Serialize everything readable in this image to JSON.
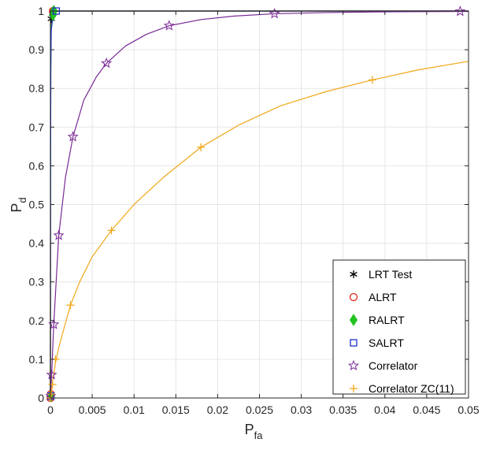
{
  "chart_data": {
    "type": "line",
    "title": "",
    "xlabel": {
      "main": "P",
      "sub": "fa"
    },
    "ylabel": {
      "main": "P",
      "sub": "d"
    },
    "xlim": [
      0,
      0.05
    ],
    "ylim": [
      0,
      1
    ],
    "grid": true,
    "legend_position": "bottom-right",
    "x_ticks": [
      0,
      0.005,
      0.01,
      0.015,
      0.02,
      0.025,
      0.03,
      0.035,
      0.04,
      0.045,
      0.05
    ],
    "x_tick_labels": [
      "0",
      "0.005",
      "0.01",
      "0.015",
      "0.02",
      "0.025",
      "0.03",
      "0.035",
      "0.04",
      "0.045",
      "0.05"
    ],
    "y_ticks": [
      0,
      0.1,
      0.2,
      0.3,
      0.4,
      0.5,
      0.6,
      0.7,
      0.8,
      0.9,
      1
    ],
    "y_tick_labels": [
      "0",
      "0.1",
      "0.2",
      "0.3",
      "0.4",
      "0.5",
      "0.6",
      "0.7",
      "0.8",
      "0.9",
      "1"
    ],
    "series": [
      {
        "name": "LRT Test",
        "color": "#000000",
        "marker": "asterisk",
        "x": [
          0,
          1e-05,
          3e-05,
          0.0001,
          0.0002,
          0.0005,
          0.05
        ],
        "y": [
          0,
          0.6,
          0.9,
          0.98,
          0.995,
          1,
          1
        ],
        "marker_x": [
          0,
          0.0001,
          0.0003
        ],
        "marker_y": [
          0,
          0.98,
          1
        ]
      },
      {
        "name": "ALRT",
        "color": "#e2231a",
        "marker": "circle",
        "x": [
          0,
          1e-05,
          3e-05,
          0.0001,
          0.0002,
          0.0005,
          0.05
        ],
        "y": [
          0,
          0.58,
          0.88,
          0.975,
          0.993,
          1,
          1
        ],
        "marker_x": [
          0,
          5e-05,
          0.0003
        ],
        "marker_y": [
          0,
          0.01,
          1
        ]
      },
      {
        "name": "RALRT",
        "color": "#22c322",
        "marker": "diamond",
        "x": [
          0,
          2e-05,
          5e-05,
          0.0001,
          0.0003,
          0.0006,
          0.05
        ],
        "y": [
          0,
          0.55,
          0.85,
          0.96,
          0.99,
          1,
          1
        ],
        "marker_x": [
          5e-05,
          0.0003,
          0.0004
        ],
        "marker_y": [
          0.005,
          0.99,
          1
        ]
      },
      {
        "name": "SALRT",
        "color": "#1f2fcf",
        "marker": "square",
        "x": [
          0,
          2e-05,
          5e-05,
          0.0001,
          0.0003,
          0.0006,
          0.001,
          0.05
        ],
        "y": [
          0,
          0.55,
          0.85,
          0.95,
          0.985,
          0.997,
          1,
          1
        ],
        "marker_x": [
          5e-05,
          0.0007
        ],
        "marker_y": [
          0.005,
          1
        ]
      },
      {
        "name": "Correlator",
        "color": "#7a2a96",
        "marker": "star",
        "x": [
          0,
          2e-05,
          5e-05,
          0.00015,
          0.0004,
          0.001,
          0.0018,
          0.0027,
          0.004,
          0.0055,
          0.0067,
          0.009,
          0.0115,
          0.0142,
          0.018,
          0.022,
          0.0268,
          0.033,
          0.04,
          0.049,
          0.05
        ],
        "y": [
          0,
          0.005,
          0.02,
          0.06,
          0.19,
          0.42,
          0.57,
          0.675,
          0.77,
          0.83,
          0.865,
          0.91,
          0.94,
          0.962,
          0.978,
          0.987,
          0.993,
          0.996,
          0.998,
          0.999,
          0.999
        ],
        "marker_x": [
          5e-05,
          0.00015,
          0.0004,
          0.001,
          0.0027,
          0.0067,
          0.0142,
          0.0268,
          0.049
        ],
        "marker_y": [
          0.005,
          0.06,
          0.19,
          0.42,
          0.675,
          0.865,
          0.962,
          0.993,
          0.999
        ]
      },
      {
        "name": "Correlator ZC(11)",
        "color": "#f0a81a",
        "marker": "plus",
        "x": [
          0,
          5e-05,
          0.0001,
          0.00025,
          0.0006,
          0.001,
          0.0015,
          0.0024,
          0.0035,
          0.005,
          0.0073,
          0.01,
          0.0135,
          0.018,
          0.0225,
          0.0275,
          0.033,
          0.0385,
          0.044,
          0.05
        ],
        "y": [
          0,
          0.005,
          0.01,
          0.04,
          0.09,
          0.13,
          0.17,
          0.24,
          0.3,
          0.365,
          0.433,
          0.5,
          0.57,
          0.648,
          0.705,
          0.755,
          0.792,
          0.822,
          0.848,
          0.87
        ],
        "marker_x": [
          0,
          0.0001,
          0.00025,
          0.0006,
          0.0024,
          0.0073,
          0.018,
          0.0385
        ],
        "marker_y": [
          0,
          0.01,
          0.035,
          0.1,
          0.24,
          0.433,
          0.648,
          0.822
        ]
      }
    ]
  }
}
